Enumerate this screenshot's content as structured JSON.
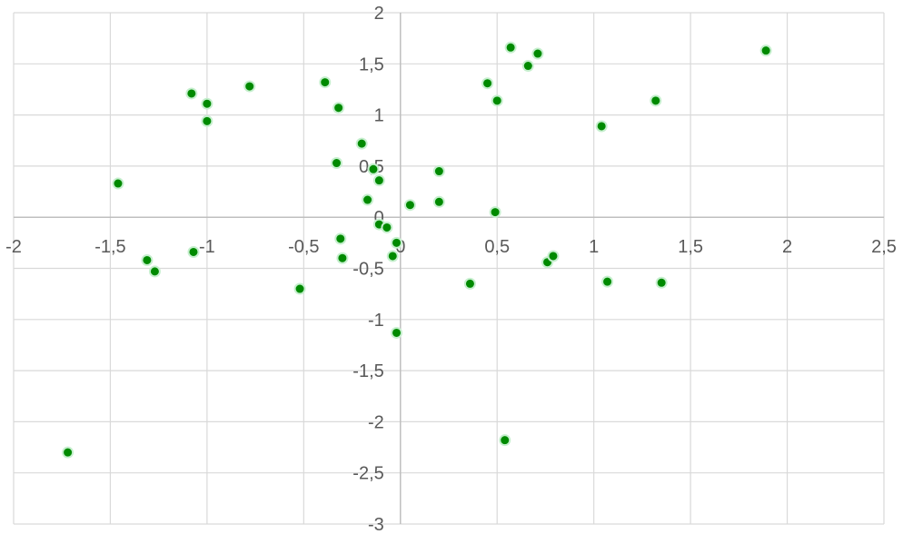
{
  "chart_data": {
    "type": "scatter",
    "title": "",
    "xlabel": "",
    "ylabel": "",
    "xlim": [
      -2,
      2.5
    ],
    "ylim": [
      -3,
      2
    ],
    "x_tick_labels": [
      "-2",
      "-1,5",
      "-1",
      "-0,5",
      "0",
      "0,5",
      "1",
      "1,5",
      "2",
      "2,5"
    ],
    "y_tick_labels": [
      "2",
      "1,5",
      "1",
      "0,5",
      "0",
      "-0,5",
      "-1",
      "-1,5",
      "-2",
      "-2,5",
      "-3"
    ],
    "grid": true,
    "marker_color": "#008a00",
    "marker_edge_color": "#c6efce",
    "points": [
      {
        "x": -1.72,
        "y": -2.3
      },
      {
        "x": -1.46,
        "y": 0.33
      },
      {
        "x": -1.31,
        "y": -0.42
      },
      {
        "x": -1.27,
        "y": -0.53
      },
      {
        "x": -1.07,
        "y": -0.34
      },
      {
        "x": -1.08,
        "y": 1.21
      },
      {
        "x": -1.0,
        "y": 1.11
      },
      {
        "x": -1.0,
        "y": 0.94
      },
      {
        "x": -0.78,
        "y": 1.28
      },
      {
        "x": -0.52,
        "y": -0.7
      },
      {
        "x": -0.39,
        "y": 1.32
      },
      {
        "x": -0.32,
        "y": 1.07
      },
      {
        "x": -0.33,
        "y": 0.53
      },
      {
        "x": -0.31,
        "y": -0.21
      },
      {
        "x": -0.3,
        "y": -0.4
      },
      {
        "x": -0.2,
        "y": 0.72
      },
      {
        "x": -0.14,
        "y": 0.47
      },
      {
        "x": -0.11,
        "y": 0.36
      },
      {
        "x": -0.17,
        "y": 0.17
      },
      {
        "x": -0.11,
        "y": -0.07
      },
      {
        "x": -0.07,
        "y": -0.1
      },
      {
        "x": -0.02,
        "y": -0.25
      },
      {
        "x": -0.04,
        "y": -0.38
      },
      {
        "x": -0.02,
        "y": -1.13
      },
      {
        "x": 0.05,
        "y": 0.12
      },
      {
        "x": 0.2,
        "y": 0.45
      },
      {
        "x": 0.2,
        "y": 0.15
      },
      {
        "x": 0.36,
        "y": -0.65
      },
      {
        "x": 0.45,
        "y": 1.31
      },
      {
        "x": 0.5,
        "y": 1.14
      },
      {
        "x": 0.49,
        "y": 0.05
      },
      {
        "x": 0.54,
        "y": -2.18
      },
      {
        "x": 0.57,
        "y": 1.66
      },
      {
        "x": 0.66,
        "y": 1.48
      },
      {
        "x": 0.71,
        "y": 1.6
      },
      {
        "x": 0.76,
        "y": -0.44
      },
      {
        "x": 0.79,
        "y": -0.38
      },
      {
        "x": 1.04,
        "y": 0.89
      },
      {
        "x": 1.07,
        "y": -0.63
      },
      {
        "x": 1.32,
        "y": 1.14
      },
      {
        "x": 1.35,
        "y": -0.64
      },
      {
        "x": 1.89,
        "y": 1.63
      }
    ]
  }
}
